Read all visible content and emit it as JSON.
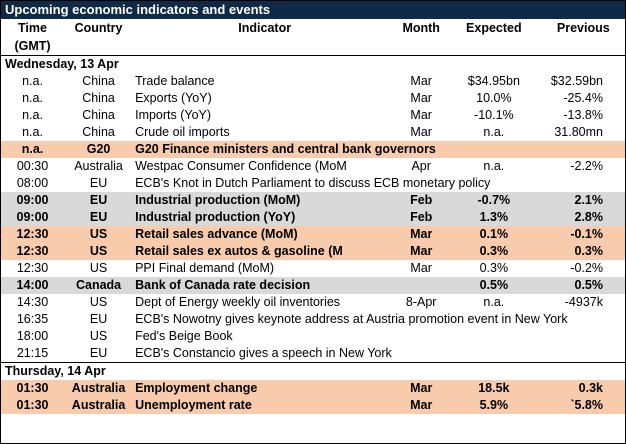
{
  "title": "Upcoming economic indicators and events",
  "headers": {
    "time": [
      "Time",
      "(GMT)"
    ],
    "country": "Country",
    "indicator": "Indicator",
    "month": "Month",
    "expected": "Expected",
    "previous": "Previous"
  },
  "sections": [
    {
      "date": "Wednesday, 13 Apr",
      "rows": [
        {
          "time": "n.a.",
          "country": "China",
          "indicator": "Trade balance",
          "month": "Mar",
          "expected": "$34.95bn",
          "previous": "$32.59bn",
          "style": ""
        },
        {
          "time": "n.a.",
          "country": "China",
          "indicator": "Exports (YoY)",
          "month": "Mar",
          "expected": "10.0%",
          "previous": "-25.4%",
          "style": ""
        },
        {
          "time": "n.a.",
          "country": "China",
          "indicator": "Imports (YoY)",
          "month": "Mar",
          "expected": "-10.1%",
          "previous": "-13.8%",
          "style": ""
        },
        {
          "time": "n.a.",
          "country": "China",
          "indicator": "Crude oil imports",
          "month": "Mar",
          "expected": "n.a.",
          "previous": "31.80mn",
          "style": ""
        },
        {
          "time": "n.a.",
          "country": "G20",
          "indicator": "G20 Finance ministers and central bank governors",
          "month": "",
          "expected": "",
          "previous": "",
          "style": "peach"
        },
        {
          "time": "00:30",
          "country": "Australia",
          "indicator": "Westpac Consumer Confidence (MoM",
          "month": "Apr",
          "expected": "n.a.",
          "previous": "-2.2%",
          "style": ""
        },
        {
          "time": "08:00",
          "country": "EU",
          "indicator": "ECB's Knot in Dutch Parliament to discuss ECB monetary policy",
          "month": "",
          "expected": "",
          "previous": "",
          "style": ""
        },
        {
          "time": "09:00",
          "country": "EU",
          "indicator": "Industrial production (MoM)",
          "month": "Feb",
          "expected": "-0.7%",
          "previous": "2.1%",
          "style": "grey"
        },
        {
          "time": "09:00",
          "country": "EU",
          "indicator": "Industrial production (YoY)",
          "month": "Feb",
          "expected": "1.3%",
          "previous": "2.8%",
          "style": "grey"
        },
        {
          "time": "12:30",
          "country": "US",
          "indicator": "Retail sales advance (MoM)",
          "month": "Mar",
          "expected": "0.1%",
          "previous": "-0.1%",
          "style": "peach"
        },
        {
          "time": "12:30",
          "country": "US",
          "indicator": "Retail sales ex autos & gasoline (M",
          "month": "Mar",
          "expected": "0.3%",
          "previous": "0.3%",
          "style": "peach"
        },
        {
          "time": "12:30",
          "country": "US",
          "indicator": "PPI Final demand (MoM)",
          "month": "Mar",
          "expected": "0.3%",
          "previous": "-0.2%",
          "style": ""
        },
        {
          "time": "14:00",
          "country": "Canada",
          "indicator": "Bank of Canada rate decision",
          "month": "",
          "expected": "0.5%",
          "previous": "0.5%",
          "style": "grey"
        },
        {
          "time": "14:30",
          "country": "US",
          "indicator": "Dept of Energy weekly oil inventories",
          "month": "8-Apr",
          "expected": "n.a.",
          "previous": "-4937k",
          "style": ""
        },
        {
          "time": "16:35",
          "country": "EU",
          "indicator": "ECB's Nowotny gives keynote address at Austria promotion event in New York",
          "month": "",
          "expected": "",
          "previous": "",
          "style": ""
        },
        {
          "time": "18:00",
          "country": "US",
          "indicator": "Fed's Beige Book",
          "month": "",
          "expected": "",
          "previous": "",
          "style": ""
        },
        {
          "time": "21:15",
          "country": "EU",
          "indicator": "ECB's Constancio gives a speech in New York",
          "month": "",
          "expected": "",
          "previous": "",
          "style": ""
        }
      ]
    },
    {
      "date": "Thursday, 14 Apr",
      "rows": [
        {
          "time": "01:30",
          "country": "Australia",
          "indicator": "Employment change",
          "month": "Mar",
          "expected": "18.5k",
          "previous": "0.3k",
          "style": "peach"
        },
        {
          "time": "01:30",
          "country": "Australia",
          "indicator": "Unemployment rate",
          "month": "Mar",
          "expected": "5.9%",
          "previous": "`5.8%",
          "style": "peach"
        }
      ]
    }
  ]
}
